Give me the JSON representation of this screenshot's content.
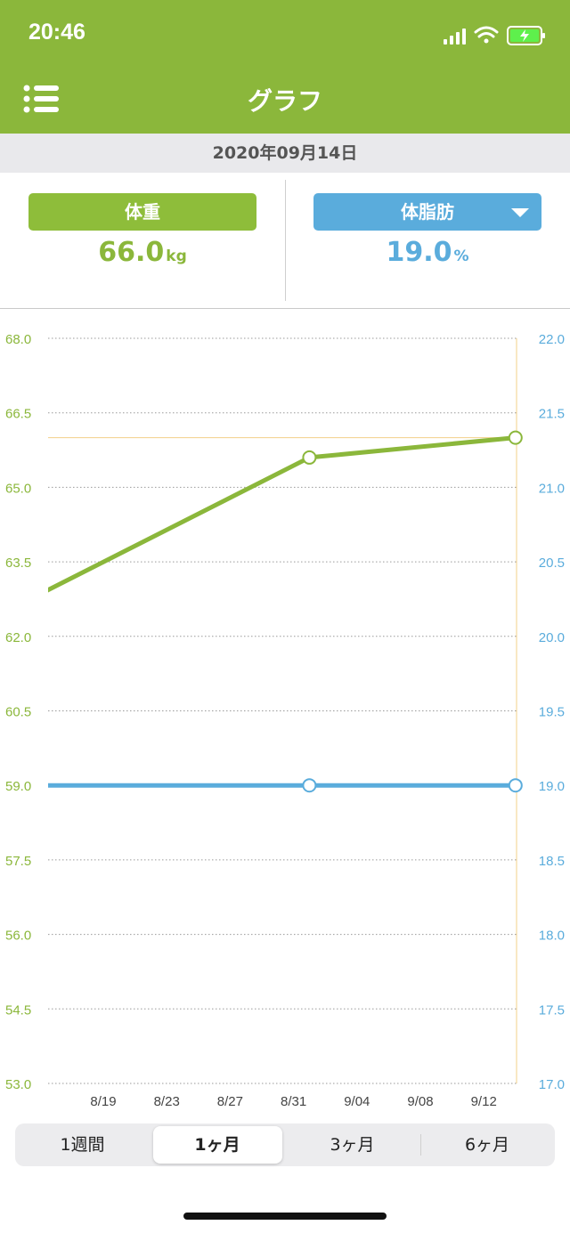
{
  "status": {
    "time": "20:46"
  },
  "nav": {
    "title": "グラフ",
    "menu_icon": "menu-icon"
  },
  "date_label": "2020年09月14日",
  "metrics": {
    "weight": {
      "label": "体重",
      "value": "66.0",
      "unit": "kg",
      "color": "#8bb73b"
    },
    "fat": {
      "label": "体脂肪",
      "value": "19.0",
      "unit": "%",
      "color": "#5aacdc"
    }
  },
  "chart_data": {
    "type": "line",
    "x_ticks": [
      "8/19",
      "8/23",
      "8/27",
      "8/31",
      "9/04",
      "9/08",
      "9/12"
    ],
    "y_left": {
      "ticks": [
        "68.0",
        "66.5",
        "65.0",
        "63.5",
        "62.0",
        "60.5",
        "59.0",
        "57.5",
        "56.0",
        "54.5",
        "53.0"
      ],
      "ylim": [
        53.0,
        68.0
      ]
    },
    "y_right": {
      "ticks": [
        "22.0",
        "21.5",
        "21.0",
        "20.5",
        "20.0",
        "19.5",
        "19.0",
        "18.5",
        "18.0",
        "17.5",
        "17.0"
      ],
      "ylim": [
        17.0,
        22.0
      ]
    },
    "series": [
      {
        "axis": "left",
        "color": "#8bb73b",
        "points": [
          {
            "x": "2020-08-15",
            "y": 62.85
          },
          {
            "x": "2020-09-01",
            "y": 65.6
          },
          {
            "x": "2020-09-14",
            "y": 66.0
          }
        ],
        "markers": [
          1,
          2
        ]
      },
      {
        "axis": "right",
        "color": "#5aacdc",
        "points": [
          {
            "x": "2020-08-15",
            "y": 19.0
          },
          {
            "x": "2020-09-01",
            "y": 19.0
          },
          {
            "x": "2020-09-14",
            "y": 19.0
          }
        ],
        "markers": [
          1,
          2
        ]
      }
    ],
    "reference_line": {
      "axis": "left",
      "y": 66.0,
      "color": "#f3d08a"
    },
    "grid": true
  },
  "ranges": {
    "items": [
      "1週間",
      "1ヶ月",
      "3ヶ月",
      "6ヶ月"
    ],
    "selected": 1
  }
}
